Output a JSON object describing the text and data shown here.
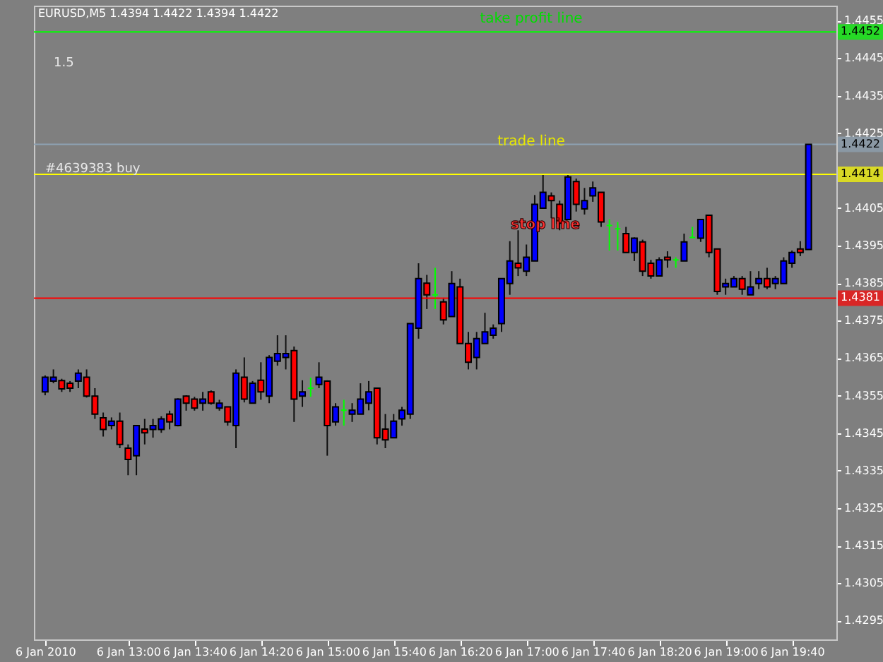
{
  "chart_data": {
    "type": "candlestick",
    "title": "EURUSD,M5  1.4394 1.4422 1.4394 1.4422",
    "categories": [
      "6 Jan 2010",
      null,
      null,
      null,
      null,
      null,
      null,
      null,
      null,
      null,
      "6 Jan 13:00",
      null,
      null,
      null,
      null,
      null,
      null,
      null,
      "6 Jan 13:40",
      null,
      null,
      null,
      null,
      null,
      null,
      null,
      "6 Jan 14:20",
      null,
      null,
      null,
      null,
      null,
      null,
      null,
      "6 Jan 15:00",
      null,
      null,
      null,
      null,
      null,
      null,
      null,
      "6 Jan 15:40",
      null,
      null,
      null,
      null,
      null,
      null,
      null,
      "6 Jan 16:20",
      null,
      null,
      null,
      null,
      null,
      null,
      null,
      "6 Jan 17:00",
      null,
      null,
      null,
      null,
      null,
      null,
      null,
      "6 Jan 17:40",
      null,
      null,
      null,
      null,
      null,
      null,
      null,
      "6 Jan 18:20",
      null,
      null,
      null,
      null,
      null,
      null,
      null,
      "6 Jan 19:00",
      null,
      null,
      null,
      null,
      null,
      null,
      null,
      "6 Jan 19:40",
      null,
      null
    ],
    "ohlc": [
      [
        1.4356,
        1.43604,
        1.43551,
        1.43599
      ],
      [
        1.43589,
        1.4362,
        1.43583,
        1.43599
      ],
      [
        1.4359,
        1.43595,
        1.4356,
        1.43568
      ],
      [
        1.43583,
        1.43589,
        1.4356,
        1.4357
      ],
      [
        1.43589,
        1.4362,
        1.4357,
        1.4361
      ],
      [
        1.43599,
        1.4362,
        1.43545,
        1.43549
      ],
      [
        1.43549,
        1.4357,
        1.43488,
        1.43501
      ],
      [
        1.43491,
        1.43505,
        1.43441,
        1.4346
      ],
      [
        1.4347,
        1.43492,
        1.4346,
        1.43482
      ],
      [
        1.43482,
        1.43505,
        1.4341,
        1.4342
      ],
      [
        1.4341,
        1.4342,
        1.43338,
        1.4338
      ],
      [
        1.4339,
        1.4347,
        1.43338,
        1.4347
      ],
      [
        1.43461,
        1.43488,
        1.4342,
        1.43451
      ],
      [
        1.4346,
        1.43488,
        1.43438,
        1.4347
      ],
      [
        1.4346,
        1.43495,
        1.43451,
        1.43488
      ],
      [
        1.43501,
        1.4351,
        1.4346,
        1.4348
      ],
      [
        1.4347,
        1.43543,
        1.43468,
        1.43541
      ],
      [
        1.43549,
        1.43551,
        1.4351,
        1.4353
      ],
      [
        1.43541,
        1.43547,
        1.4351,
        1.43517
      ],
      [
        1.4353,
        1.4356,
        1.4351,
        1.43541
      ],
      [
        1.4356,
        1.43564,
        1.43526,
        1.4353
      ],
      [
        1.43517,
        1.43539,
        1.4351,
        1.4353
      ],
      [
        1.4352,
        1.4352,
        1.4347,
        1.4348
      ],
      [
        1.4347,
        1.4362,
        1.4341,
        1.4361
      ],
      [
        1.43599,
        1.43652,
        1.43532,
        1.43541
      ],
      [
        1.4353,
        1.43589,
        1.4353,
        1.43583
      ],
      [
        1.43591,
        1.43639,
        1.43539,
        1.4356
      ],
      [
        1.43549,
        1.43658,
        1.4353,
        1.43652
      ],
      [
        1.43642,
        1.43711,
        1.4363,
        1.43662
      ],
      [
        1.43652,
        1.43711,
        1.4362,
        1.43662
      ],
      [
        1.4367,
        1.43681,
        1.4348,
        1.43541
      ],
      [
        1.43549,
        1.43591,
        1.4352,
        1.4356
      ],
      [
        1.4357,
        1.43598,
        1.43547,
        1.4357
      ],
      [
        1.4358,
        1.43639,
        1.4357,
        1.43599
      ],
      [
        1.43589,
        1.43591,
        1.4339,
        1.4347
      ],
      [
        1.4348,
        1.4353,
        1.4347,
        1.4352
      ],
      [
        1.43511,
        1.43539,
        1.4347,
        1.43511
      ],
      [
        1.43501,
        1.4353,
        1.4348,
        1.43511
      ],
      [
        1.43501,
        1.43583,
        1.43501,
        1.43541
      ],
      [
        1.4353,
        1.43589,
        1.43511,
        1.4356
      ],
      [
        1.4357,
        1.4357,
        1.4342,
        1.43438
      ],
      [
        1.43461,
        1.43501,
        1.4341,
        1.43432
      ],
      [
        1.43438,
        1.43501,
        1.43438,
        1.43482
      ],
      [
        1.43488,
        1.4352,
        1.4347,
        1.43511
      ],
      [
        1.43501,
        1.43742,
        1.43488,
        1.43742
      ],
      [
        1.4373,
        1.43903,
        1.43702,
        1.43862
      ],
      [
        1.4385,
        1.43872,
        1.43781,
        1.43819
      ],
      [
        1.43819,
        1.43891,
        1.43781,
        1.43819
      ],
      [
        1.438,
        1.43811,
        1.4374,
        1.43752
      ],
      [
        1.43761,
        1.43882,
        1.43761,
        1.43849
      ],
      [
        1.4384,
        1.43862,
        1.43689,
        1.43689
      ],
      [
        1.43689,
        1.4372,
        1.4362,
        1.43639
      ],
      [
        1.43652,
        1.4372,
        1.4362,
        1.43702
      ],
      [
        1.43689,
        1.43771,
        1.43689,
        1.4372
      ],
      [
        1.43711,
        1.4374,
        1.43702,
        1.4373
      ],
      [
        1.43742,
        1.43862,
        1.4372,
        1.43862
      ],
      [
        1.43849,
        1.43962,
        1.43819,
        1.43909
      ],
      [
        1.43903,
        1.43991,
        1.43869,
        1.43891
      ],
      [
        1.43882,
        1.43953,
        1.43869,
        1.43919
      ],
      [
        1.43909,
        1.44085,
        1.43909,
        1.4406
      ],
      [
        1.4405,
        1.44142,
        1.4405,
        1.44092
      ],
      [
        1.44083,
        1.44092,
        1.44023,
        1.4407
      ],
      [
        1.4406,
        1.4407,
        1.43991,
        1.4401
      ],
      [
        1.4402,
        1.44142,
        1.4402,
        1.44133
      ],
      [
        1.44121,
        1.44129,
        1.44041,
        1.4406
      ],
      [
        1.44048,
        1.44104,
        1.44033,
        1.4407
      ],
      [
        1.44083,
        1.44121,
        1.44067,
        1.44104
      ],
      [
        1.44092,
        1.44092,
        1.44,
        1.44013
      ],
      [
        1.44004,
        1.4402,
        1.43937,
        1.44004
      ],
      [
        1.43995,
        1.44013,
        1.43937,
        1.43995
      ],
      [
        1.43982,
        1.44,
        1.43932,
        1.43932
      ],
      [
        1.43932,
        1.43972,
        1.43909,
        1.4397
      ],
      [
        1.4396,
        1.43966,
        1.43869,
        1.43882
      ],
      [
        1.43903,
        1.43912,
        1.43862,
        1.43869
      ],
      [
        1.43869,
        1.43919,
        1.43869,
        1.43912
      ],
      [
        1.43919,
        1.43935,
        1.43891,
        1.43912
      ],
      [
        1.43912,
        1.43919,
        1.43891,
        1.43912
      ],
      [
        1.43909,
        1.43982,
        1.43909,
        1.4396
      ],
      [
        1.43972,
        1.44,
        1.4397,
        1.43972
      ],
      [
        1.4397,
        1.4402,
        1.4396,
        1.4402
      ],
      [
        1.44031,
        1.44031,
        1.43919,
        1.43932
      ],
      [
        1.43941,
        1.43941,
        1.43819,
        1.43828
      ],
      [
        1.4384,
        1.43862,
        1.43819,
        1.43849
      ],
      [
        1.4384,
        1.43869,
        1.4384,
        1.43862
      ],
      [
        1.43862,
        1.43869,
        1.43819,
        1.43834
      ],
      [
        1.43819,
        1.43882,
        1.43819,
        1.4384
      ],
      [
        1.43849,
        1.43882,
        1.43834,
        1.43862
      ],
      [
        1.43862,
        1.43891,
        1.43834,
        1.4384
      ],
      [
        1.43849,
        1.43869,
        1.43834,
        1.43862
      ],
      [
        1.43849,
        1.43919,
        1.43849,
        1.43909
      ],
      [
        1.43903,
        1.43937,
        1.43891,
        1.43932
      ],
      [
        1.43941,
        1.43962,
        1.43922,
        1.43932
      ],
      [
        1.4394,
        1.4422,
        1.4394,
        1.4422
      ]
    ],
    "colors": [
      "#0000ff",
      "#0000ff",
      "#ff0000",
      "#ff0000",
      "#0000ff",
      "#ff0000",
      "#ff0000",
      "#ff0000",
      "#0000ff",
      "#ff0000",
      "#ff0000",
      "#0000ff",
      "#ff0000",
      "#0000ff",
      "#0000ff",
      "#ff0000",
      "#0000ff",
      "#ff0000",
      "#ff0000",
      "#0000ff",
      "#ff0000",
      "#0000ff",
      "#ff0000",
      "#0000ff",
      "#ff0000",
      "#0000ff",
      "#ff0000",
      "#0000ff",
      "#0000ff",
      "#0000ff",
      "#ff0000",
      "#0000ff",
      "#00ff00",
      "#0000ff",
      "#ff0000",
      "#0000ff",
      "#00ff00",
      "#0000ff",
      "#0000ff",
      "#0000ff",
      "#ff0000",
      "#ff0000",
      "#0000ff",
      "#0000ff",
      "#0000ff",
      "#0000ff",
      "#ff0000",
      "#00ff00",
      "#ff0000",
      "#0000ff",
      "#ff0000",
      "#ff0000",
      "#0000ff",
      "#0000ff",
      "#0000ff",
      "#0000ff",
      "#0000ff",
      "#ff0000",
      "#0000ff",
      "#0000ff",
      "#0000ff",
      "#ff0000",
      "#ff0000",
      "#0000ff",
      "#ff0000",
      "#0000ff",
      "#0000ff",
      "#ff0000",
      "#00ff00",
      "#00ff00",
      "#ff0000",
      "#0000ff",
      "#ff0000",
      "#ff0000",
      "#0000ff",
      "#ff0000",
      "#00ff00",
      "#0000ff",
      "#00ff00",
      "#0000ff",
      "#ff0000",
      "#ff0000",
      "#0000ff",
      "#0000ff",
      "#ff0000",
      "#0000ff",
      "#0000ff",
      "#ff0000",
      "#0000ff",
      "#0000ff",
      "#0000ff",
      "#ff0000",
      "#0000ff"
    ],
    "ylim": [
      1.429,
      1.4459
    ],
    "yticks": [
      1.4295,
      1.4305,
      1.4315,
      1.4325,
      1.4335,
      1.4345,
      1.4355,
      1.4365,
      1.4375,
      1.4385,
      1.4395,
      1.4405,
      1.4425,
      1.4435,
      1.4445,
      1.4455
    ],
    "grid": false,
    "ref_lines": [
      {
        "axis": "y",
        "value": 1.4452,
        "label": "1.4452",
        "color": "#00ff00"
      },
      {
        "axis": "y",
        "value": 1.4422,
        "label": "1.4422",
        "color": "#8ea2b4"
      },
      {
        "axis": "y",
        "value": 1.4414,
        "label": "1.4414",
        "color": "#ffff00"
      },
      {
        "axis": "y",
        "value": 1.4381,
        "label": "1.4381",
        "color": "#ff0000"
      }
    ],
    "annotations": [
      "take profit line",
      "1.5",
      "trade line",
      "#4639383 buy",
      "stop line"
    ]
  }
}
